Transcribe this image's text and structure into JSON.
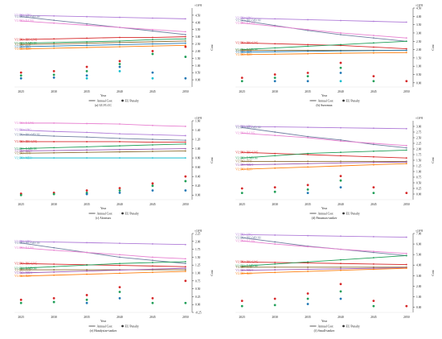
{
  "colors": {
    "VLSFO+LNG": "#b07cd8",
    "VLSFO+BIO-MEOH": "#6f7fa0",
    "VLSFO+E-LNG": "#e77fd0",
    "VLSFO+BIO-LNG": "#d62728",
    "VLSFO+E-MEOH": "#1f9e57",
    "VLSFO+FTO": "#8c6d31",
    "VLSFO+BIO": "#1f77b4",
    "VLSFO+H2O": "#ff7f0e",
    "VLSFO+MEO": "#17becf",
    "VLSFO+MGO": "#9b59b6",
    "axis": "#333333"
  },
  "chart_data": [
    {
      "type": "line",
      "title": "(a) ULVLCC",
      "xlabel": "Year",
      "ylabel": "Cost",
      "y_unit": "×10^8",
      "x": [
        2025,
        2030,
        2035,
        2040,
        2045,
        2050
      ],
      "ylim": [
        -0.5,
        5.0
      ],
      "yticks": [
        0.0,
        0.5,
        1.0,
        1.5,
        2.0,
        2.5,
        3.0,
        3.5,
        4.0,
        4.5
      ],
      "series": [
        {
          "name": "VLSFO+LNG",
          "values": [
            4.5,
            4.45,
            4.4,
            4.35,
            4.3,
            4.25
          ]
        },
        {
          "name": "VLSFO+BIO-MEOH",
          "values": [
            4.4,
            4.15,
            3.9,
            3.65,
            3.4,
            3.15
          ]
        },
        {
          "name": "VLSFO+E-LNG",
          "values": [
            4.1,
            3.95,
            3.8,
            3.65,
            3.5,
            3.35
          ]
        },
        {
          "name": "VLSFO+BIO-LNG",
          "values": [
            2.8,
            2.85,
            2.9,
            2.95,
            2.95,
            3.0
          ]
        },
        {
          "name": "VLSFO+E-MEOH",
          "values": [
            2.55,
            2.6,
            2.65,
            2.7,
            2.8,
            2.85
          ]
        },
        {
          "name": "VLSFO+FTO",
          "values": [
            2.45,
            2.5,
            2.55,
            2.6,
            2.65,
            2.7
          ]
        },
        {
          "name": "VLSFO+BIO",
          "values": [
            2.3,
            2.35,
            2.4,
            2.45,
            2.5,
            2.55
          ]
        },
        {
          "name": "VLSFO+H2O",
          "values": [
            2.15,
            2.2,
            2.25,
            2.3,
            2.35,
            2.4
          ]
        }
      ],
      "penalty_points": [
        {
          "x": 2025,
          "values": [
            0.5,
            0.3,
            0.1
          ]
        },
        {
          "x": 2030,
          "values": [
            0.6,
            0.35,
            0.15
          ]
        },
        {
          "x": 2035,
          "values": [
            0.9,
            0.6,
            0.3,
            0.1
          ]
        },
        {
          "x": 2040,
          "values": [
            1.3,
            1.1,
            0.9,
            0.6
          ]
        },
        {
          "x": 2045,
          "values": [
            2.0,
            1.8,
            0.5,
            0.1
          ]
        },
        {
          "x": 2050,
          "values": [
            2.3,
            1.6,
            0.1
          ]
        }
      ],
      "legend": [
        "Annual Cost",
        "EU Penalty"
      ]
    },
    {
      "type": "line",
      "title": "(b) Suezmax",
      "xlabel": "Year",
      "ylabel": "Cost",
      "y_unit": "×10^8",
      "x": [
        2025,
        2030,
        2035,
        2040,
        2045,
        2050
      ],
      "ylim": [
        -0.25,
        4.5
      ],
      "yticks": [
        0.0,
        0.5,
        1.0,
        1.5,
        2.0,
        2.5,
        3.0,
        3.5,
        4.0,
        4.5
      ],
      "series": [
        {
          "name": "VLSFO+LNG",
          "values": [
            3.9,
            3.85,
            3.8,
            3.75,
            3.7,
            3.65
          ]
        },
        {
          "name": "VLSFO+BIO-MEOH",
          "values": [
            3.75,
            3.45,
            3.15,
            2.9,
            2.7,
            2.5
          ]
        },
        {
          "name": "VLSFO+E-LNG",
          "values": [
            3.6,
            3.4,
            3.2,
            3.0,
            2.85,
            2.7
          ]
        },
        {
          "name": "VLSFO+BIO-LNG",
          "values": [
            2.4,
            2.35,
            2.3,
            2.25,
            2.15,
            2.05
          ]
        },
        {
          "name": "VLSFO+E-MEOH",
          "values": [
            2.0,
            2.1,
            2.2,
            2.3,
            2.4,
            2.5
          ]
        },
        {
          "name": "VLSFO+FTO",
          "values": [
            1.95,
            1.95,
            1.95,
            1.95,
            1.95,
            1.95
          ]
        },
        {
          "name": "VLSFO+BIO",
          "values": [
            1.85,
            1.87,
            1.9,
            1.92,
            1.94,
            1.96
          ]
        },
        {
          "name": "VLSFO+H2O",
          "values": [
            1.7,
            1.72,
            1.75,
            1.78,
            1.8,
            1.82
          ]
        }
      ],
      "penalty_points": [
        {
          "x": 2025,
          "values": [
            0.3,
            0.1
          ]
        },
        {
          "x": 2030,
          "values": [
            0.5,
            0.3,
            0.1
          ]
        },
        {
          "x": 2035,
          "values": [
            0.6,
            0.4,
            0.1
          ]
        },
        {
          "x": 2040,
          "values": [
            1.2,
            0.9,
            0.6,
            0.1
          ]
        },
        {
          "x": 2045,
          "values": [
            0.4,
            0.1
          ]
        },
        {
          "x": 2050,
          "values": [
            0.1
          ]
        }
      ],
      "legend": [
        "Annual Cost",
        "EU Penalty"
      ]
    },
    {
      "type": "line",
      "title": "(c) Aframax",
      "xlabel": "Year",
      "ylabel": "Cost",
      "y_unit": "×10^8",
      "x": [
        2025,
        2030,
        2035,
        2040,
        2045,
        2050
      ],
      "ylim": [
        -0.1,
        1.6
      ],
      "yticks": [
        0.0,
        0.2,
        0.4,
        0.6,
        0.8,
        1.0,
        1.2,
        1.4,
        1.6
      ],
      "series": [
        {
          "name": "VLSFO+E-LNG",
          "values": [
            1.55,
            1.55,
            1.54,
            1.53,
            1.5,
            1.48
          ]
        },
        {
          "name": "VLSFO+LNG",
          "values": [
            1.4,
            1.37,
            1.35,
            1.32,
            1.3,
            1.28
          ]
        },
        {
          "name": "VLSFO+BIO-MEOH",
          "values": [
            1.3,
            1.27,
            1.25,
            1.22,
            1.2,
            1.18
          ]
        },
        {
          "name": "VLSFO+BIO-LNG",
          "values": [
            1.15,
            1.15,
            1.15,
            1.15,
            1.14,
            1.14
          ]
        },
        {
          "name": "VLSFO+E-MEOH",
          "values": [
            1.0,
            1.02,
            1.04,
            1.06,
            1.08,
            1.1
          ]
        },
        {
          "name": "VLSFO+MGO",
          "values": [
            0.95,
            0.96,
            0.97,
            0.98,
            0.99,
            1.0
          ]
        },
        {
          "name": "VLSFO+FTO",
          "values": [
            0.9,
            0.91,
            0.92,
            0.93,
            0.94,
            0.95
          ]
        },
        {
          "name": "VLSFO+MEO",
          "values": [
            0.8,
            0.8,
            0.8,
            0.8,
            0.8,
            0.8
          ]
        }
      ],
      "penalty_points": [
        {
          "x": 2025,
          "values": [
            0.03,
            0.0
          ]
        },
        {
          "x": 2030,
          "values": [
            0.05,
            0.02
          ]
        },
        {
          "x": 2035,
          "values": [
            0.1,
            0.05,
            0.02
          ]
        },
        {
          "x": 2040,
          "values": [
            0.15,
            0.1,
            0.05
          ]
        },
        {
          "x": 2045,
          "values": [
            0.25,
            0.2,
            0.1
          ]
        },
        {
          "x": 2050,
          "values": [
            0.4,
            0.3,
            0.1
          ]
        }
      ],
      "legend": [
        "Annual Cost",
        "EU Penalty"
      ]
    },
    {
      "type": "line",
      "title": "(d) Panamax-tanker",
      "xlabel": "Year",
      "ylabel": "Cost",
      "y_unit": "×10^8",
      "x": [
        2025,
        2030,
        2035,
        2040,
        2045,
        2050
      ],
      "ylim": [
        -0.25,
        3.25
      ],
      "yticks": [
        0.0,
        0.25,
        0.5,
        0.75,
        1.0,
        1.25,
        1.5,
        1.75,
        2.0,
        2.25,
        2.5,
        2.75,
        3.0
      ],
      "series": [
        {
          "name": "VLSFO+LNG",
          "values": [
            3.0,
            2.98,
            2.96,
            2.94,
            2.92,
            2.9
          ]
        },
        {
          "name": "VLSFO+BIO-MEOH",
          "values": [
            2.95,
            2.75,
            2.55,
            2.4,
            2.2,
            2.05
          ]
        },
        {
          "name": "VLSFO+E-LNG",
          "values": [
            2.7,
            2.6,
            2.5,
            2.35,
            2.25,
            2.15
          ]
        },
        {
          "name": "VLSFO+BIO-LNG",
          "values": [
            1.85,
            1.8,
            1.75,
            1.7,
            1.65,
            1.6
          ]
        },
        {
          "name": "VLSFO+E-MEOH",
          "values": [
            1.6,
            1.7,
            1.8,
            1.85,
            1.9,
            1.95
          ]
        },
        {
          "name": "VLSFO+FTO",
          "values": [
            1.45,
            1.45,
            1.45,
            1.45,
            1.45,
            1.45
          ]
        },
        {
          "name": "VLSFO+MGO",
          "values": [
            1.3,
            1.32,
            1.35,
            1.38,
            1.4,
            1.42
          ]
        },
        {
          "name": "VLSFO+H2O",
          "values": [
            1.1,
            1.15,
            1.2,
            1.25,
            1.3,
            1.35
          ]
        }
      ],
      "penalty_points": [
        {
          "x": 2025,
          "values": [
            0.25,
            0.05
          ]
        },
        {
          "x": 2030,
          "values": [
            0.3,
            0.1
          ]
        },
        {
          "x": 2035,
          "values": [
            0.4,
            0.2,
            0.05
          ]
        },
        {
          "x": 2040,
          "values": [
            0.8,
            0.6,
            0.3
          ]
        },
        {
          "x": 2045,
          "values": [
            0.3,
            0.05
          ]
        },
        {
          "x": 2050,
          "values": [
            0.05
          ]
        }
      ],
      "legend": [
        "Annual Cost",
        "EU Penalty"
      ]
    },
    {
      "type": "line",
      "title": "(e) Handysize-tanker",
      "xlabel": "Year",
      "ylabel": "Cost",
      "y_unit": "×10^8",
      "x": [
        2025,
        2030,
        2035,
        2040,
        2045,
        2050
      ],
      "ylim": [
        -0.25,
        2.25
      ],
      "yticks": [
        -0.25,
        0.0,
        0.25,
        0.5,
        0.75,
        1.0,
        1.25,
        1.5,
        1.75,
        2.0,
        2.25
      ],
      "series": [
        {
          "name": "VLSFO+LNG",
          "values": [
            2.0,
            1.98,
            1.96,
            1.94,
            1.92,
            1.9
          ]
        },
        {
          "name": "VLSFO+BIO-MEOH",
          "values": [
            1.95,
            1.8,
            1.65,
            1.5,
            1.4,
            1.3
          ]
        },
        {
          "name": "VLSFO+E-LNG",
          "values": [
            1.8,
            1.72,
            1.65,
            1.58,
            1.5,
            1.45
          ]
        },
        {
          "name": "VLSFO+BIO-LNG",
          "values": [
            1.3,
            1.28,
            1.26,
            1.24,
            1.22,
            1.2
          ]
        },
        {
          "name": "VLSFO+E-MEOH",
          "values": [
            1.15,
            1.2,
            1.25,
            1.3,
            1.33,
            1.36
          ]
        },
        {
          "name": "VLSFO+FTO",
          "values": [
            1.1,
            1.1,
            1.1,
            1.1,
            1.1,
            1.1
          ]
        },
        {
          "name": "VLSFO+MGO",
          "values": [
            1.0,
            1.03,
            1.06,
            1.09,
            1.12,
            1.15
          ]
        },
        {
          "name": "VLSFO+H2O",
          "values": [
            0.9,
            0.93,
            0.96,
            0.99,
            1.02,
            1.05
          ]
        }
      ],
      "penalty_points": [
        {
          "x": 2025,
          "values": [
            0.15,
            0.05
          ]
        },
        {
          "x": 2030,
          "values": [
            0.2,
            0.08
          ]
        },
        {
          "x": 2035,
          "values": [
            0.3,
            0.15,
            0.05
          ]
        },
        {
          "x": 2040,
          "values": [
            0.55,
            0.4,
            0.2
          ]
        },
        {
          "x": 2045,
          "values": [
            0.2,
            0.05
          ]
        },
        {
          "x": 2050,
          "values": [
            0.75,
            0.05
          ]
        }
      ],
      "legend": [
        "Annual Cost",
        "EU Penalty"
      ]
    },
    {
      "type": "line",
      "title": "(f) Small-tanker",
      "xlabel": "Year",
      "ylabel": "Cost",
      "y_unit": "×10^8",
      "x": [
        2025,
        2030,
        2035,
        2040,
        2045,
        2050
      ],
      "ylim": [
        -0.5,
        7.0
      ],
      "yticks": [
        0.0,
        1.0,
        2.0,
        3.0,
        4.0,
        5.0,
        6.0,
        7.0
      ],
      "series": [
        {
          "name": "VLSFO+LNG",
          "values": [
            6.9,
            6.85,
            6.8,
            6.75,
            6.7,
            6.65
          ]
        },
        {
          "name": "VLSFO+BIO-MEOH",
          "values": [
            6.6,
            6.2,
            5.8,
            5.5,
            5.2,
            4.9
          ]
        },
        {
          "name": "VLSFO+E-LNG",
          "values": [
            6.3,
            6.0,
            5.75,
            5.5,
            5.3,
            5.1
          ]
        },
        {
          "name": "VLSFO+BIO-LNG",
          "values": [
            4.3,
            4.25,
            4.2,
            4.15,
            4.1,
            4.05
          ]
        },
        {
          "name": "VLSFO+E-MEOH",
          "values": [
            3.9,
            4.1,
            4.3,
            4.5,
            4.7,
            4.9
          ]
        },
        {
          "name": "VLSFO+FTO",
          "values": [
            3.8,
            3.8,
            3.8,
            3.8,
            3.8,
            3.8
          ]
        },
        {
          "name": "VLSFO+MGO",
          "values": [
            3.5,
            3.55,
            3.6,
            3.65,
            3.7,
            3.75
          ]
        },
        {
          "name": "VLSFO+H2O",
          "values": [
            3.2,
            3.3,
            3.4,
            3.5,
            3.6,
            3.7
          ]
        }
      ],
      "penalty_points": [
        {
          "x": 2025,
          "values": [
            0.6,
            0.1
          ]
        },
        {
          "x": 2030,
          "values": [
            0.8,
            0.2
          ]
        },
        {
          "x": 2035,
          "values": [
            1.3,
            0.8,
            0.3
          ]
        },
        {
          "x": 2040,
          "values": [
            2.2,
            1.5,
            0.8
          ]
        },
        {
          "x": 2045,
          "values": [
            0.6,
            0.1
          ]
        },
        {
          "x": 2050,
          "values": [
            0.1
          ]
        }
      ],
      "legend": [
        "Annual Cost",
        "EU Penalty"
      ]
    }
  ]
}
